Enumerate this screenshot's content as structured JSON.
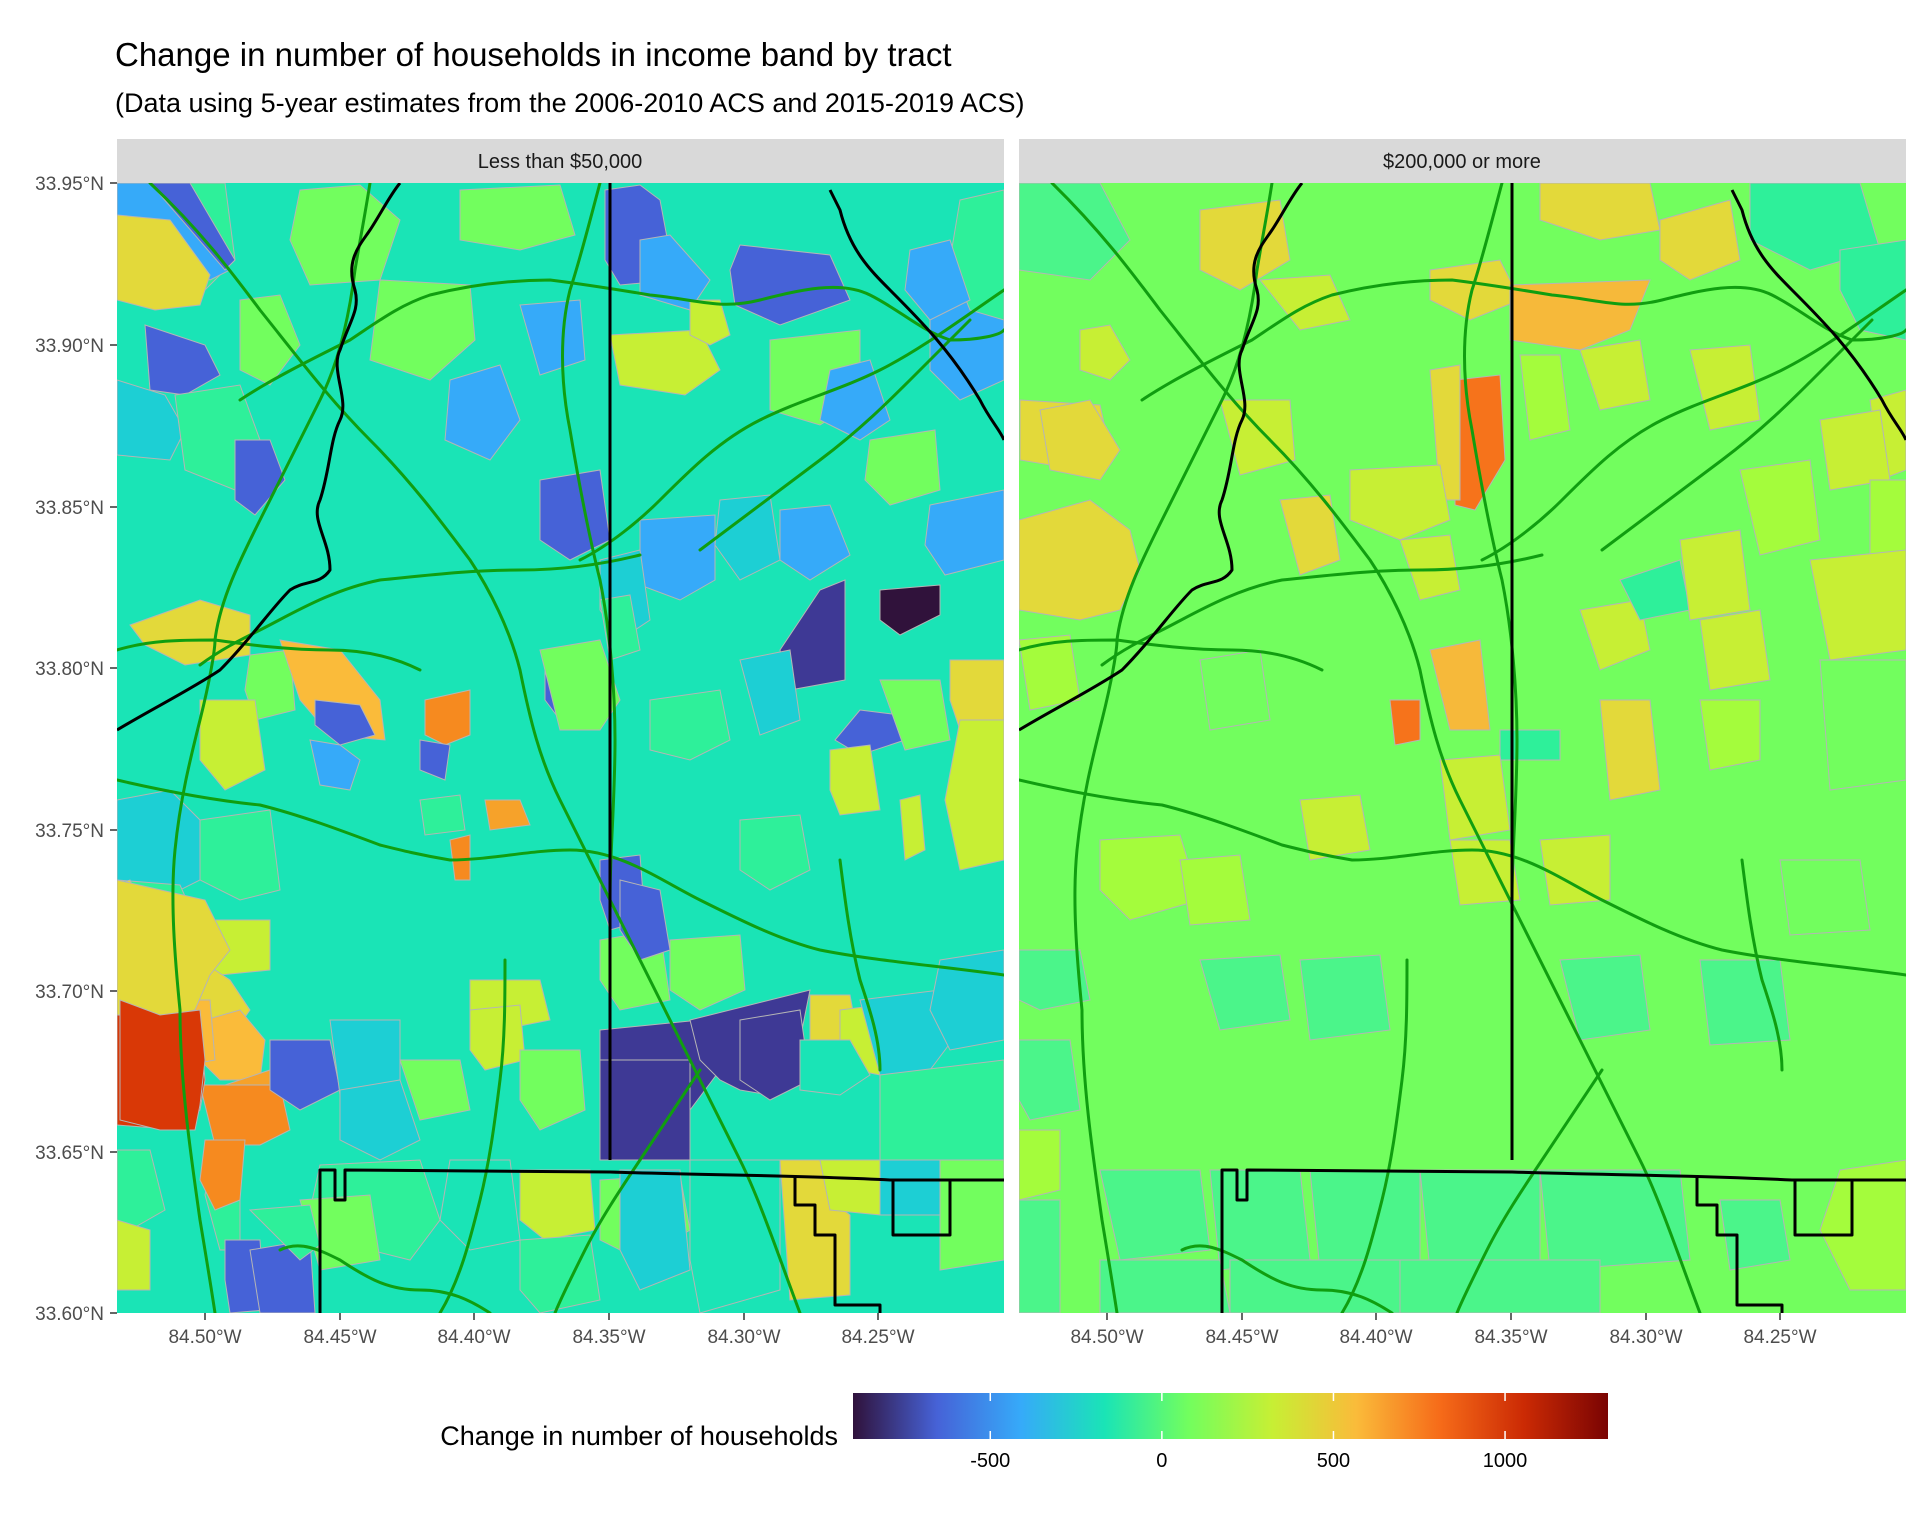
{
  "title": "Change in number of households in income band by tract",
  "subtitle": "(Data using 5-year estimates from the 2006-2010 ACS and 2015-2019 ACS)",
  "panels": [
    {
      "label": "Less than $50,000"
    },
    {
      "label": "$200,000 or more"
    }
  ],
  "axes": {
    "y_ticks": [
      "33.95°N",
      "33.90°N",
      "33.85°N",
      "33.80°N",
      "33.75°N",
      "33.70°N",
      "33.65°N",
      "33.60°N"
    ],
    "x_ticks": [
      "84.50°W",
      "84.45°W",
      "84.40°W",
      "84.35°W",
      "84.30°W",
      "84.25°W"
    ]
  },
  "legend": {
    "title": "Change in number of households",
    "ticks": [
      "-500",
      "0",
      "500",
      "1000"
    ],
    "tick_values": [
      -500,
      0,
      500,
      1000
    ],
    "range": [
      -900,
      1300
    ],
    "colormap": [
      "#30123b",
      "#4662d7",
      "#36aaf9",
      "#1ae4b6",
      "#72fe5e",
      "#c7ef34",
      "#fabb3a",
      "#f66b19",
      "#cb2a04",
      "#7a0403"
    ]
  },
  "map_layers": {
    "left_panel_dominant_colors": [
      "#1ae4b6",
      "#2ef09a",
      "#72fe5e",
      "#1dcfd4",
      "#36aaf9",
      "#4662d7",
      "#3e3995",
      "#e3d93a",
      "#fabb3a",
      "#f66b19",
      "#d93806"
    ],
    "right_panel_dominant_colors": [
      "#4bf58a",
      "#72fe5e",
      "#a4fc3c",
      "#c7ef34",
      "#e3d93a",
      "#f6b93a",
      "#f6731b",
      "#2ef09a"
    ],
    "highway_color": "#109e10",
    "boundary_color": "#000000",
    "tract_border_color": "#b5b5b5",
    "strip_color": "#d9d9d9"
  }
}
